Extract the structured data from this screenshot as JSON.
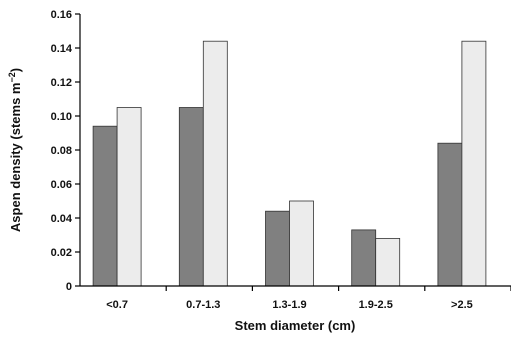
{
  "chart_data": {
    "type": "bar",
    "title": "",
    "xlabel": "Stem diameter (cm)",
    "ylabel": "Aspen density (stems m",
    "ylabel_exponent": "−2",
    "ylabel_close": ")",
    "categories": [
      "<0.7",
      "0.7-1.3",
      "1.3-1.9",
      "1.9-2.5",
      ">2.5"
    ],
    "series": [
      {
        "values": [
          0.094,
          0.105,
          0.044,
          0.033,
          0.084
        ],
        "color": "#808080"
      },
      {
        "values": [
          0.105,
          0.144,
          0.05,
          0.028,
          0.144
        ],
        "color": "#ececec"
      }
    ],
    "ylim": [
      0,
      0.16
    ],
    "yticks": [
      "0",
      "0.02",
      "0.04",
      "0.06",
      "0.08",
      "0.10",
      "0.12",
      "0.14",
      "0.16"
    ],
    "grid": false,
    "legend": "none"
  }
}
